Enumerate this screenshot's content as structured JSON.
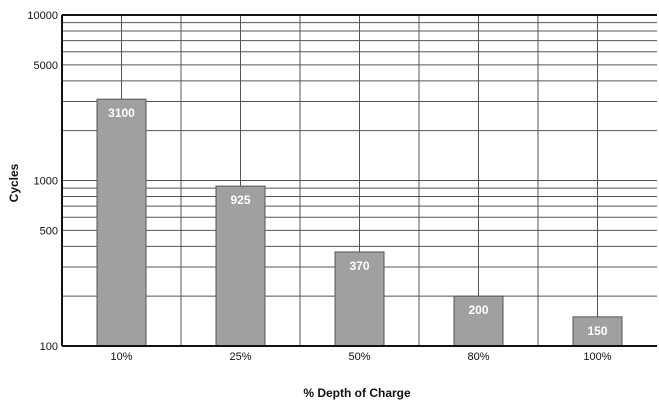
{
  "chart_data": {
    "type": "bar",
    "title": "",
    "xlabel": "% Depth of Charge",
    "ylabel": "Cycles",
    "categories": [
      "10%",
      "25%",
      "50%",
      "80%",
      "100%"
    ],
    "values": [
      3100,
      925,
      370,
      200,
      150
    ],
    "data_labels": [
      "3100",
      "925",
      "370",
      "200",
      "150"
    ],
    "y_scale": "log",
    "ylim": [
      100,
      10000
    ],
    "y_ticks": [
      100,
      500,
      1000,
      5000,
      10000
    ],
    "y_tick_labels": [
      "100",
      "500",
      "1000",
      "5000",
      "10000"
    ],
    "grid": true,
    "bar_color": "#a0a0a0",
    "bar_edge_color": "#555555",
    "grid_color": "#555555"
  }
}
